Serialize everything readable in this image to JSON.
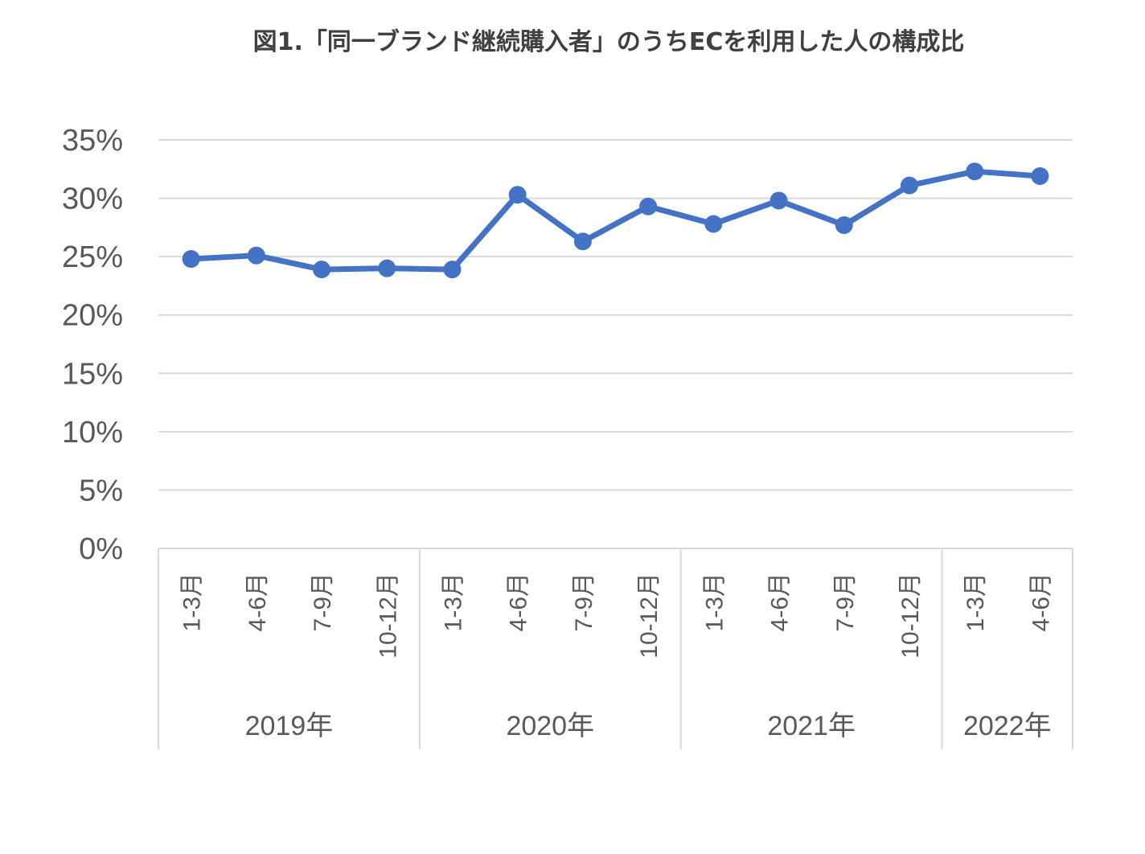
{
  "chart_data": {
    "type": "line",
    "title": "図1.「同一ブランド継続購入者」のうちECを利用した人の構成比",
    "categories": [
      "1-3月",
      "4-6月",
      "7-9月",
      "10-12月",
      "1-3月",
      "4-6月",
      "7-9月",
      "10-12月",
      "1-3月",
      "4-6月",
      "7-9月",
      "10-12月",
      "1-3月",
      "4-6月"
    ],
    "groups": [
      {
        "label": "2019年",
        "count": 4
      },
      {
        "label": "2020年",
        "count": 4
      },
      {
        "label": "2021年",
        "count": 4
      },
      {
        "label": "2022年",
        "count": 2
      }
    ],
    "series": [
      {
        "values": [
          24.8,
          25.1,
          23.9,
          24.0,
          23.9,
          30.3,
          26.3,
          29.3,
          27.8,
          29.8,
          27.7,
          31.1,
          32.3,
          31.9
        ],
        "color": "#4472C4"
      }
    ],
    "yticks": [
      "0%",
      "5%",
      "10%",
      "15%",
      "20%",
      "25%",
      "30%",
      "35%"
    ],
    "ylim": [
      0,
      35
    ],
    "ystep": 5,
    "grid": true,
    "legend": "none",
    "xlabel": "",
    "ylabel": ""
  }
}
